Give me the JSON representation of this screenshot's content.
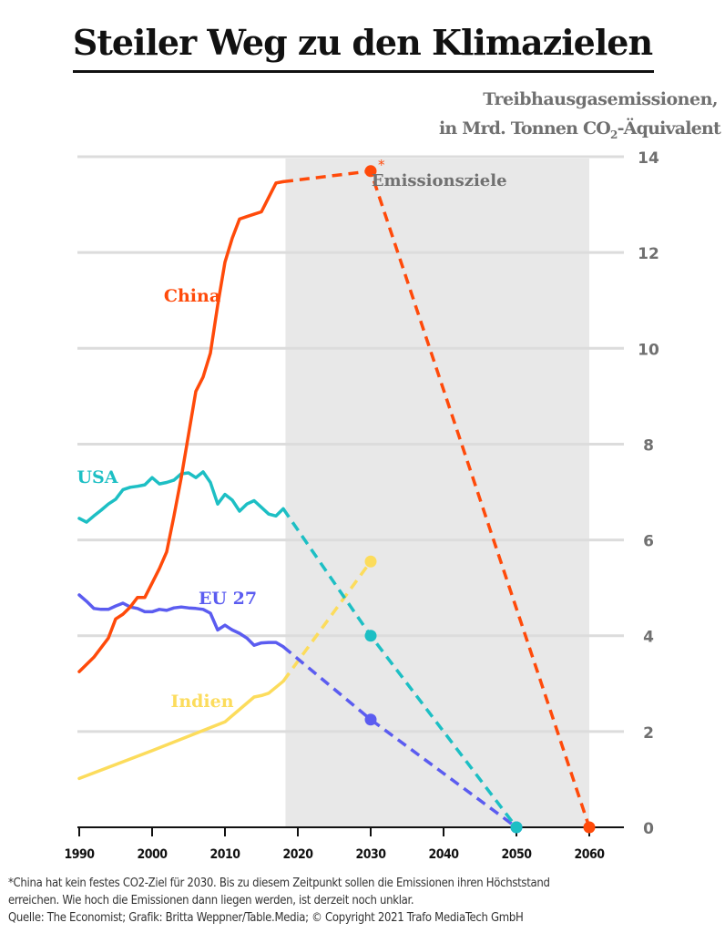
{
  "header": {
    "title": "Steiler Weg zu den Klimazielen",
    "unit_line1": "Treibhausgasemissionen,",
    "unit_line2_pre": "in Mrd. Tonnen CO",
    "unit_line2_sub": "2",
    "unit_line2_post": "-Äquivalent"
  },
  "chart_data": {
    "type": "line",
    "title": "Steiler Weg zu den Klimazielen",
    "ylabel": "Treibhausgasemissionen, in Mrd. Tonnen CO2-Äquivalent",
    "xlabel": "",
    "xlim": [
      1990,
      2065
    ],
    "ylim": [
      0,
      14
    ],
    "x_ticks": [
      1990,
      2000,
      2010,
      2020,
      2030,
      2040,
      2050,
      2060
    ],
    "y_ticks": [
      0,
      2,
      4,
      6,
      8,
      10,
      12,
      14
    ],
    "grid": true,
    "shaded_region": {
      "label": "Emissionsziele",
      "from": 2018.3,
      "to": 2060
    },
    "series": [
      {
        "name": "China",
        "label": "China",
        "color": "#ff4a0a",
        "historical": [
          [
            1990,
            3.25
          ],
          [
            1992,
            3.55
          ],
          [
            1994,
            3.95
          ],
          [
            1995,
            4.35
          ],
          [
            1996,
            4.45
          ],
          [
            1997,
            4.6
          ],
          [
            1998,
            4.8
          ],
          [
            1999,
            4.8
          ],
          [
            2000,
            5.1
          ],
          [
            2001,
            5.4
          ],
          [
            2002,
            5.75
          ],
          [
            2003,
            6.5
          ],
          [
            2004,
            7.3
          ],
          [
            2005,
            8.2
          ],
          [
            2006,
            9.1
          ],
          [
            2007,
            9.4
          ],
          [
            2008,
            9.9
          ],
          [
            2009,
            10.9
          ],
          [
            2010,
            11.8
          ],
          [
            2011,
            12.3
          ],
          [
            2012,
            12.7
          ],
          [
            2013,
            12.75
          ],
          [
            2014,
            12.8
          ],
          [
            2015,
            12.85
          ],
          [
            2016,
            13.15
          ],
          [
            2017,
            13.45
          ],
          [
            2018,
            13.48
          ]
        ],
        "projection": [
          [
            2018,
            13.48
          ],
          [
            2030,
            13.7
          ],
          [
            2060,
            0
          ]
        ],
        "markers": [
          [
            2030,
            13.7
          ],
          [
            2060,
            0
          ]
        ],
        "annotation": "*"
      },
      {
        "name": "USA",
        "label": "USA",
        "color": "#1dbfc4",
        "historical": [
          [
            1990,
            6.45
          ],
          [
            1991,
            6.37
          ],
          [
            1992,
            6.5
          ],
          [
            1993,
            6.62
          ],
          [
            1994,
            6.75
          ],
          [
            1995,
            6.85
          ],
          [
            1996,
            7.05
          ],
          [
            1997,
            7.1
          ],
          [
            1998,
            7.12
          ],
          [
            1999,
            7.15
          ],
          [
            2000,
            7.3
          ],
          [
            2001,
            7.17
          ],
          [
            2002,
            7.2
          ],
          [
            2003,
            7.25
          ],
          [
            2004,
            7.38
          ],
          [
            2005,
            7.4
          ],
          [
            2006,
            7.3
          ],
          [
            2007,
            7.42
          ],
          [
            2008,
            7.2
          ],
          [
            2009,
            6.75
          ],
          [
            2010,
            6.95
          ],
          [
            2011,
            6.83
          ],
          [
            2012,
            6.6
          ],
          [
            2013,
            6.75
          ],
          [
            2014,
            6.82
          ],
          [
            2015,
            6.68
          ],
          [
            2016,
            6.54
          ],
          [
            2017,
            6.5
          ],
          [
            2018,
            6.65
          ]
        ],
        "projection": [
          [
            2018,
            6.65
          ],
          [
            2030,
            4.0
          ],
          [
            2050,
            0
          ]
        ],
        "markers": [
          [
            2030,
            4.0
          ],
          [
            2050,
            0
          ]
        ]
      },
      {
        "name": "EU 27",
        "label": "EU 27",
        "color": "#5b5cf0",
        "historical": [
          [
            1990,
            4.85
          ],
          [
            1991,
            4.72
          ],
          [
            1992,
            4.57
          ],
          [
            1993,
            4.55
          ],
          [
            1994,
            4.55
          ],
          [
            1995,
            4.62
          ],
          [
            1996,
            4.68
          ],
          [
            1997,
            4.6
          ],
          [
            1998,
            4.57
          ],
          [
            1999,
            4.5
          ],
          [
            2000,
            4.5
          ],
          [
            2001,
            4.55
          ],
          [
            2002,
            4.53
          ],
          [
            2003,
            4.58
          ],
          [
            2004,
            4.6
          ],
          [
            2005,
            4.58
          ],
          [
            2006,
            4.57
          ],
          [
            2007,
            4.55
          ],
          [
            2008,
            4.47
          ],
          [
            2009,
            4.12
          ],
          [
            2010,
            4.22
          ],
          [
            2011,
            4.12
          ],
          [
            2012,
            4.05
          ],
          [
            2013,
            3.95
          ],
          [
            2014,
            3.8
          ],
          [
            2015,
            3.85
          ],
          [
            2016,
            3.86
          ],
          [
            2017,
            3.86
          ],
          [
            2018,
            3.77
          ]
        ],
        "projection": [
          [
            2018,
            3.77
          ],
          [
            2030,
            2.25
          ],
          [
            2050,
            0
          ]
        ],
        "markers": [
          [
            2030,
            2.25
          ],
          [
            2050,
            0
          ]
        ]
      },
      {
        "name": "Indien",
        "label": "Indien",
        "color": "#fcdc5c",
        "historical": [
          [
            1990,
            1.02
          ],
          [
            2000,
            1.6
          ],
          [
            2010,
            2.2
          ],
          [
            2014,
            2.72
          ],
          [
            2015,
            2.75
          ],
          [
            2016,
            2.8
          ],
          [
            2018,
            3.05
          ]
        ],
        "projection": [
          [
            2018,
            3.05
          ],
          [
            2030,
            5.55
          ]
        ],
        "markers": [
          [
            2030,
            5.55
          ]
        ]
      }
    ],
    "footnote": "*China hat kein festes CO2-Ziel für 2030. Bis zu diesem Zeitpunkt sollen die Emissionen ihren Höchststand",
    "footnote2": "erreichen. Wie hoch die Emissionen dann liegen werden, ist derzeit noch unklar.",
    "source": "Quelle: The Economist; Grafik: Britta Weppner/Table.Media; © Copyright 2021 Trafo MediaTech GmbH"
  },
  "colors": {
    "grid": "#dcdcdc",
    "shade": "#e8e8e8",
    "axis_text": "#707070",
    "axis": "#111111"
  }
}
